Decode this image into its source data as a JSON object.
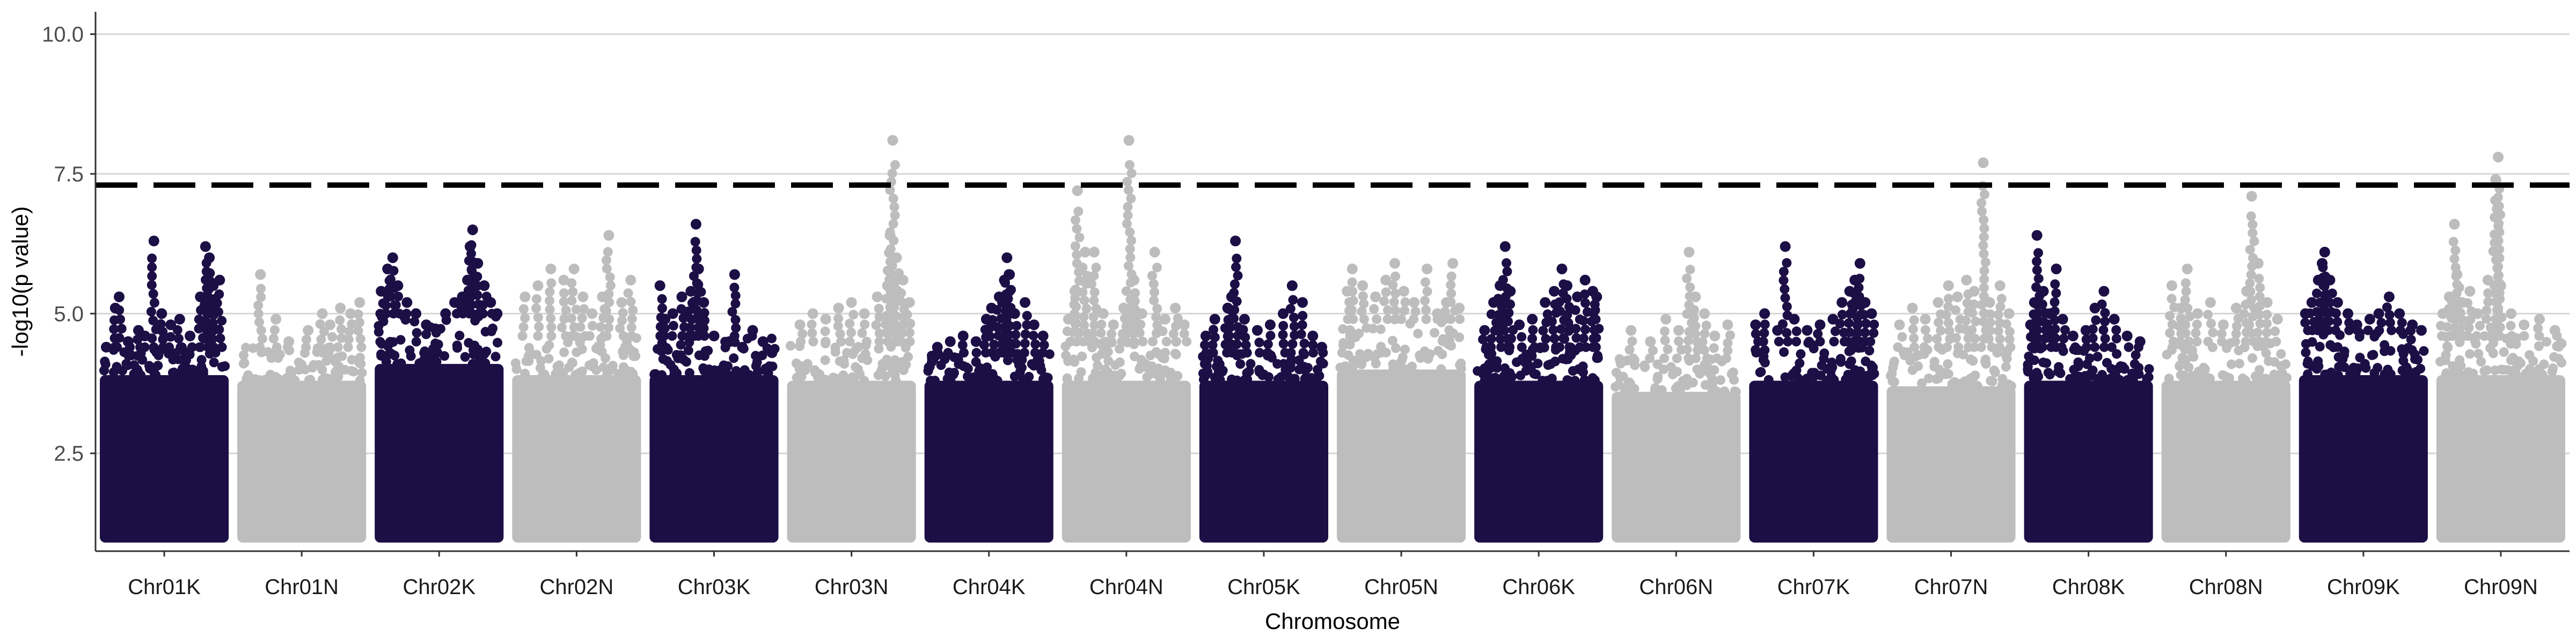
{
  "chart_data": {
    "type": "scatter",
    "chart_kind": "manhattan",
    "title": "",
    "xlabel": "Chromosome",
    "ylabel": "-log10(p value)",
    "ylim": [
      0.75,
      10.4
    ],
    "yticks": [
      2.5,
      5.0,
      7.5,
      10.0
    ],
    "ytick_labels": [
      "2.5",
      "5.0",
      "7.5",
      "10.0"
    ],
    "grid": "horizontal major gridlines",
    "legend": "none",
    "threshold": {
      "value": 7.3,
      "style": "dashed",
      "color": "#000000"
    },
    "colors": {
      "K": "#1b0f45",
      "N": "#bdbdbd"
    },
    "point_floor": 1.0,
    "categories": [
      "Chr01K",
      "Chr01N",
      "Chr02K",
      "Chr02N",
      "Chr03K",
      "Chr03N",
      "Chr04K",
      "Chr04N",
      "Chr05K",
      "Chr05N",
      "Chr06K",
      "Chr06N",
      "Chr07K",
      "Chr07N",
      "Chr08K",
      "Chr08N",
      "Chr09K",
      "Chr09N"
    ],
    "series": [
      {
        "name": "Chr01K",
        "color": "#1b0f45",
        "band_top": 3.9,
        "cloud_top": 4.4,
        "peaks": [
          [
            0.05,
            4.4
          ],
          [
            0.12,
            5.1
          ],
          [
            0.15,
            5.3
          ],
          [
            0.22,
            4.5
          ],
          [
            0.3,
            4.7
          ],
          [
            0.35,
            4.6
          ],
          [
            0.42,
            6.3
          ],
          [
            0.48,
            5.0
          ],
          [
            0.55,
            4.8
          ],
          [
            0.62,
            4.9
          ],
          [
            0.7,
            4.6
          ],
          [
            0.78,
            5.3
          ],
          [
            0.82,
            6.2
          ],
          [
            0.85,
            6.0
          ],
          [
            0.88,
            5.5
          ],
          [
            0.93,
            5.6
          ]
        ]
      },
      {
        "name": "Chr01N",
        "color": "#bdbdbd",
        "band_top": 3.8,
        "cloud_top": 4.4,
        "peaks": [
          [
            0.18,
            5.7
          ],
          [
            0.3,
            4.9
          ],
          [
            0.4,
            4.5
          ],
          [
            0.55,
            4.7
          ],
          [
            0.66,
            5.0
          ],
          [
            0.72,
            4.8
          ],
          [
            0.8,
            5.1
          ],
          [
            0.88,
            5.0
          ],
          [
            0.95,
            5.2
          ]
        ]
      },
      {
        "name": "Chr02K",
        "color": "#1b0f45",
        "band_top": 4.1,
        "cloud_top": 5.0,
        "peaks": [
          [
            0.05,
            5.4
          ],
          [
            0.1,
            5.8
          ],
          [
            0.14,
            6.0
          ],
          [
            0.18,
            5.5
          ],
          [
            0.25,
            5.2
          ],
          [
            0.32,
            5.0
          ],
          [
            0.4,
            4.8
          ],
          [
            0.55,
            5.0
          ],
          [
            0.62,
            5.2
          ],
          [
            0.68,
            5.3
          ],
          [
            0.72,
            5.6
          ],
          [
            0.74,
            6.2
          ],
          [
            0.76,
            6.5
          ],
          [
            0.8,
            5.9
          ],
          [
            0.85,
            5.5
          ],
          [
            0.9,
            5.2
          ],
          [
            0.95,
            5.0
          ]
        ]
      },
      {
        "name": "Chr02N",
        "color": "#bdbdbd",
        "band_top": 3.9,
        "cloud_top": 4.6,
        "peaks": [
          [
            0.1,
            5.3
          ],
          [
            0.2,
            5.5
          ],
          [
            0.3,
            5.8
          ],
          [
            0.4,
            5.6
          ],
          [
            0.48,
            5.8
          ],
          [
            0.55,
            5.3
          ],
          [
            0.62,
            5.0
          ],
          [
            0.7,
            5.3
          ],
          [
            0.75,
            6.4
          ],
          [
            0.85,
            5.2
          ],
          [
            0.92,
            5.6
          ]
        ]
      },
      {
        "name": "Chr03K",
        "color": "#1b0f45",
        "band_top": 3.9,
        "cloud_top": 4.6,
        "peaks": [
          [
            0.08,
            5.5
          ],
          [
            0.12,
            4.9
          ],
          [
            0.18,
            5.0
          ],
          [
            0.25,
            5.3
          ],
          [
            0.32,
            5.4
          ],
          [
            0.36,
            6.6
          ],
          [
            0.38,
            5.8
          ],
          [
            0.42,
            5.2
          ],
          [
            0.5,
            4.6
          ],
          [
            0.62,
            4.5
          ],
          [
            0.66,
            5.7
          ],
          [
            0.72,
            4.4
          ],
          [
            0.8,
            4.7
          ],
          [
            0.88,
            4.5
          ],
          [
            0.95,
            4.3
          ]
        ]
      },
      {
        "name": "Chr03N",
        "color": "#bdbdbd",
        "band_top": 3.8,
        "cloud_top": 4.5,
        "peaks": [
          [
            0.1,
            4.8
          ],
          [
            0.2,
            5.0
          ],
          [
            0.3,
            4.9
          ],
          [
            0.4,
            5.1
          ],
          [
            0.5,
            5.2
          ],
          [
            0.6,
            5.0
          ],
          [
            0.7,
            5.3
          ],
          [
            0.78,
            5.5
          ],
          [
            0.8,
            6.4
          ],
          [
            0.82,
            8.1
          ],
          [
            0.85,
            6.0
          ],
          [
            0.9,
            5.6
          ],
          [
            0.95,
            5.2
          ]
        ]
      },
      {
        "name": "Chr04K",
        "color": "#1b0f45",
        "band_top": 3.8,
        "cloud_top": 4.3,
        "peaks": [
          [
            0.1,
            4.4
          ],
          [
            0.2,
            4.5
          ],
          [
            0.3,
            4.6
          ],
          [
            0.4,
            4.5
          ],
          [
            0.48,
            4.9
          ],
          [
            0.52,
            5.1
          ],
          [
            0.58,
            5.3
          ],
          [
            0.62,
            5.6
          ],
          [
            0.64,
            6.0
          ],
          [
            0.66,
            5.7
          ],
          [
            0.7,
            5.0
          ],
          [
            0.78,
            5.2
          ],
          [
            0.85,
            4.8
          ],
          [
            0.92,
            4.6
          ]
        ]
      },
      {
        "name": "Chr04N",
        "color": "#bdbdbd",
        "band_top": 3.8,
        "cloud_top": 4.5,
        "peaks": [
          [
            0.05,
            4.9
          ],
          [
            0.1,
            5.4
          ],
          [
            0.12,
            7.2
          ],
          [
            0.18,
            6.1
          ],
          [
            0.25,
            6.1
          ],
          [
            0.32,
            5.0
          ],
          [
            0.4,
            4.8
          ],
          [
            0.48,
            5.1
          ],
          [
            0.52,
            8.1
          ],
          [
            0.56,
            5.6
          ],
          [
            0.62,
            5.0
          ],
          [
            0.72,
            6.1
          ],
          [
            0.8,
            4.9
          ],
          [
            0.88,
            5.1
          ],
          [
            0.95,
            4.8
          ]
        ]
      },
      {
        "name": "Chr05K",
        "color": "#1b0f45",
        "band_top": 3.8,
        "cloud_top": 4.3,
        "peaks": [
          [
            0.05,
            4.6
          ],
          [
            0.12,
            4.9
          ],
          [
            0.22,
            5.1
          ],
          [
            0.25,
            5.3
          ],
          [
            0.28,
            6.3
          ],
          [
            0.35,
            4.9
          ],
          [
            0.45,
            4.7
          ],
          [
            0.55,
            4.8
          ],
          [
            0.65,
            5.0
          ],
          [
            0.72,
            5.5
          ],
          [
            0.8,
            5.2
          ],
          [
            0.88,
            4.6
          ],
          [
            0.95,
            4.4
          ]
        ]
      },
      {
        "name": "Chr05N",
        "color": "#bdbdbd",
        "band_top": 4.0,
        "cloud_top": 4.9,
        "peaks": [
          [
            0.08,
            5.4
          ],
          [
            0.12,
            5.8
          ],
          [
            0.2,
            5.5
          ],
          [
            0.3,
            5.3
          ],
          [
            0.38,
            5.6
          ],
          [
            0.45,
            5.9
          ],
          [
            0.52,
            5.4
          ],
          [
            0.6,
            5.2
          ],
          [
            0.7,
            5.8
          ],
          [
            0.78,
            5.0
          ],
          [
            0.85,
            5.2
          ],
          [
            0.9,
            5.9
          ],
          [
            0.95,
            5.1
          ]
        ]
      },
      {
        "name": "Chr06K",
        "color": "#1b0f45",
        "band_top": 3.8,
        "cloud_top": 4.4,
        "peaks": [
          [
            0.08,
            4.7
          ],
          [
            0.15,
            5.2
          ],
          [
            0.2,
            5.5
          ],
          [
            0.24,
            6.2
          ],
          [
            0.28,
            5.4
          ],
          [
            0.35,
            4.8
          ],
          [
            0.45,
            4.9
          ],
          [
            0.55,
            5.2
          ],
          [
            0.62,
            5.4
          ],
          [
            0.68,
            5.8
          ],
          [
            0.72,
            5.5
          ],
          [
            0.8,
            5.3
          ],
          [
            0.86,
            5.6
          ],
          [
            0.92,
            5.4
          ],
          [
            0.95,
            5.3
          ]
        ]
      },
      {
        "name": "Chr06N",
        "color": "#bdbdbd",
        "band_top": 3.6,
        "cloud_top": 4.2,
        "peaks": [
          [
            0.15,
            4.7
          ],
          [
            0.3,
            4.5
          ],
          [
            0.42,
            4.9
          ],
          [
            0.52,
            4.7
          ],
          [
            0.6,
            6.1
          ],
          [
            0.65,
            5.3
          ],
          [
            0.72,
            5.0
          ],
          [
            0.8,
            4.6
          ],
          [
            0.9,
            4.8
          ]
        ]
      },
      {
        "name": "Chr07K",
        "color": "#1b0f45",
        "band_top": 3.8,
        "cloud_top": 4.5,
        "peaks": [
          [
            0.05,
            4.8
          ],
          [
            0.12,
            5.0
          ],
          [
            0.22,
            4.7
          ],
          [
            0.28,
            6.2
          ],
          [
            0.35,
            4.9
          ],
          [
            0.45,
            4.7
          ],
          [
            0.55,
            4.8
          ],
          [
            0.65,
            4.9
          ],
          [
            0.72,
            5.2
          ],
          [
            0.78,
            5.4
          ],
          [
            0.82,
            5.6
          ],
          [
            0.86,
            5.9
          ],
          [
            0.9,
            5.2
          ],
          [
            0.95,
            5.0
          ]
        ]
      },
      {
        "name": "Chr07N",
        "color": "#bdbdbd",
        "band_top": 3.7,
        "cloud_top": 4.4,
        "peaks": [
          [
            0.1,
            4.8
          ],
          [
            0.2,
            5.1
          ],
          [
            0.3,
            4.9
          ],
          [
            0.4,
            5.2
          ],
          [
            0.48,
            5.5
          ],
          [
            0.55,
            5.3
          ],
          [
            0.62,
            5.6
          ],
          [
            0.68,
            5.4
          ],
          [
            0.75,
            7.7
          ],
          [
            0.8,
            5.2
          ],
          [
            0.88,
            5.5
          ],
          [
            0.95,
            5.0
          ]
        ]
      },
      {
        "name": "Chr08K",
        "color": "#1b0f45",
        "band_top": 3.8,
        "cloud_top": 4.4,
        "peaks": [
          [
            0.05,
            4.8
          ],
          [
            0.08,
            5.2
          ],
          [
            0.1,
            6.4
          ],
          [
            0.15,
            5.4
          ],
          [
            0.2,
            5.0
          ],
          [
            0.25,
            5.8
          ],
          [
            0.3,
            4.9
          ],
          [
            0.38,
            4.6
          ],
          [
            0.48,
            4.7
          ],
          [
            0.55,
            5.1
          ],
          [
            0.62,
            5.4
          ],
          [
            0.7,
            4.9
          ],
          [
            0.8,
            4.6
          ],
          [
            0.9,
            4.5
          ]
        ]
      },
      {
        "name": "Chr08N",
        "color": "#bdbdbd",
        "band_top": 3.8,
        "cloud_top": 4.5,
        "peaks": [
          [
            0.08,
            5.5
          ],
          [
            0.15,
            5.1
          ],
          [
            0.2,
            5.8
          ],
          [
            0.28,
            5.0
          ],
          [
            0.38,
            5.2
          ],
          [
            0.48,
            4.8
          ],
          [
            0.58,
            5.1
          ],
          [
            0.66,
            5.4
          ],
          [
            0.7,
            7.1
          ],
          [
            0.75,
            5.9
          ],
          [
            0.82,
            5.2
          ],
          [
            0.9,
            4.9
          ]
        ]
      },
      {
        "name": "Chr09K",
        "color": "#1b0f45",
        "band_top": 3.9,
        "cloud_top": 4.7,
        "peaks": [
          [
            0.05,
            5.0
          ],
          [
            0.1,
            5.2
          ],
          [
            0.15,
            5.6
          ],
          [
            0.18,
            5.9
          ],
          [
            0.2,
            6.1
          ],
          [
            0.24,
            5.6
          ],
          [
            0.3,
            5.2
          ],
          [
            0.38,
            5.0
          ],
          [
            0.45,
            4.8
          ],
          [
            0.55,
            4.9
          ],
          [
            0.62,
            5.0
          ],
          [
            0.7,
            5.3
          ],
          [
            0.78,
            5.0
          ],
          [
            0.88,
            4.8
          ],
          [
            0.95,
            4.7
          ]
        ]
      },
      {
        "name": "Chr09N",
        "color": "#bdbdbd",
        "band_top": 3.9,
        "cloud_top": 4.6,
        "peaks": [
          [
            0.05,
            5.0
          ],
          [
            0.1,
            5.3
          ],
          [
            0.14,
            6.6
          ],
          [
            0.16,
            5.7
          ],
          [
            0.2,
            5.2
          ],
          [
            0.26,
            5.4
          ],
          [
            0.32,
            5.0
          ],
          [
            0.4,
            5.6
          ],
          [
            0.46,
            7.4
          ],
          [
            0.48,
            7.8
          ],
          [
            0.5,
            5.5
          ],
          [
            0.58,
            5.0
          ],
          [
            0.68,
            4.8
          ],
          [
            0.8,
            4.9
          ],
          [
            0.92,
            4.7
          ]
        ]
      }
    ]
  }
}
